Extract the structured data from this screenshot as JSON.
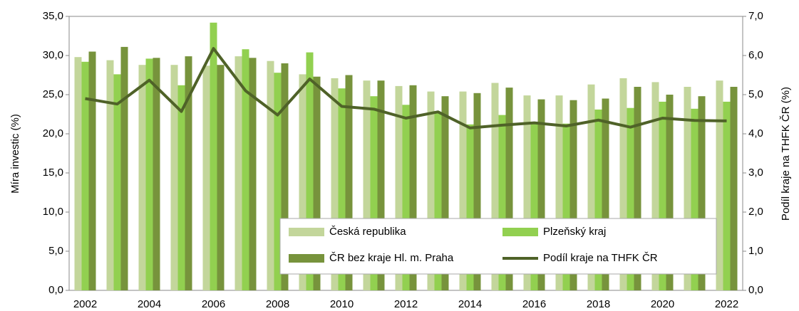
{
  "chart_data": {
    "type": "bar",
    "categories": [
      "2002",
      null,
      "2004",
      null,
      "2006",
      null,
      "2008",
      null,
      "2010",
      null,
      "2012",
      null,
      "2014",
      null,
      "2016",
      null,
      "2018",
      null,
      "2020",
      null,
      "2022"
    ],
    "y_label": "Míra investic (%)",
    "y2_label": "Podíl kraje na THFK ČR (%)",
    "ylim": [
      0,
      35
    ],
    "yticks": [
      {
        "value": 0,
        "label": "0,0"
      },
      {
        "value": 5,
        "label": "5,0"
      },
      {
        "value": 10,
        "label": "10,0"
      },
      {
        "value": 15,
        "label": "15,0"
      },
      {
        "value": 20,
        "label": "20,0"
      },
      {
        "value": 25,
        "label": "25,0"
      },
      {
        "value": 30,
        "label": "30,0"
      },
      {
        "value": 35,
        "label": "35,0"
      }
    ],
    "y2lim": [
      0,
      7
    ],
    "y2ticks": [
      {
        "value": 0,
        "label": "0,0"
      },
      {
        "value": 1,
        "label": "1,0"
      },
      {
        "value": 2,
        "label": "2,0"
      },
      {
        "value": 3,
        "label": "3,0"
      },
      {
        "value": 4,
        "label": "4,0"
      },
      {
        "value": 5,
        "label": "5,0"
      },
      {
        "value": 6,
        "label": "6,0"
      },
      {
        "value": 7,
        "label": "7,0"
      }
    ],
    "grid": false,
    "series": [
      {
        "name": "Česká republika",
        "color": "#c3d69b",
        "values": [
          29.8,
          29.4,
          28.8,
          28.8,
          28.7,
          29.9,
          29.3,
          27.6,
          27.1,
          26.8,
          26.1,
          25.4,
          25.4,
          26.5,
          24.9,
          24.9,
          26.3,
          27.1,
          26.6,
          26.0,
          26.8
        ]
      },
      {
        "name": "Plzeňský kraj",
        "color": "#92d050",
        "values": [
          29.2,
          27.6,
          29.6,
          26.2,
          34.2,
          30.8,
          27.8,
          30.4,
          25.8,
          24.8,
          23.7,
          22.7,
          21.2,
          22.4,
          21.5,
          21.3,
          23.1,
          23.3,
          24.1,
          23.2,
          24.1
        ]
      },
      {
        "name": "ČR bez kraje Hl. m. Praha",
        "color": "#77933c",
        "values": [
          30.5,
          31.1,
          29.7,
          29.9,
          28.8,
          29.7,
          29.0,
          27.3,
          27.5,
          26.8,
          26.2,
          24.8,
          25.2,
          25.9,
          24.4,
          24.3,
          24.5,
          26.0,
          25.0,
          24.8,
          26.0
        ]
      },
      {
        "name": "Podíl kraje na THFK ČR",
        "color": "#4f6228",
        "type": "line",
        "axis": "y2",
        "values": [
          4.9,
          4.76,
          5.37,
          4.57,
          6.18,
          5.1,
          4.48,
          5.4,
          4.7,
          4.63,
          4.4,
          4.56,
          4.15,
          4.22,
          4.28,
          4.2,
          4.35,
          4.17,
          4.4,
          4.34,
          4.33
        ]
      }
    ]
  }
}
